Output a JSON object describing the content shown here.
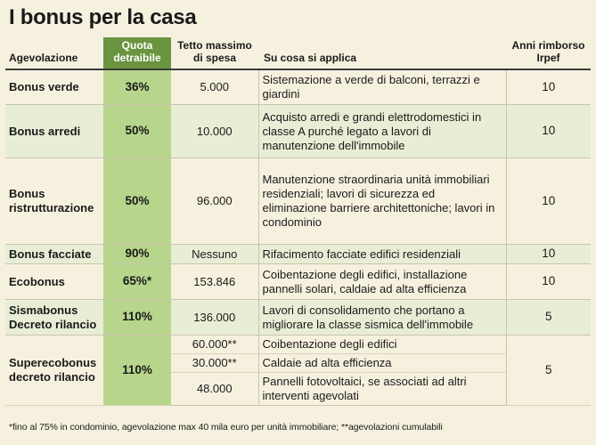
{
  "title": "I bonus per la casa",
  "headers": {
    "agevolazione": "Agevolazione",
    "quota": "Quota detraibile",
    "tetto": "Tetto massimo di spesa",
    "applica": "Su cosa si applica",
    "anni": "Anni rimborso Irpef"
  },
  "rows": [
    {
      "name": "Bonus verde",
      "quota": "36%",
      "tetto": "5.000",
      "desc": "Sistemazione a verde di balconi, terrazzi e giardini",
      "anni": "10"
    },
    {
      "name": "Bonus arredi",
      "quota": "50%",
      "tetto": "10.000",
      "desc": "Acquisto arredi e grandi elettrodomestici in classe A purché legato a lavori di manutenzione dell'immobile",
      "anni": "10"
    },
    {
      "name": "Bonus ristrutturazione",
      "quota": "50%",
      "tetto": "96.000",
      "desc": "Manutenzione straordinaria unità immobiliari residenziali; lavori di sicurezza ed eliminazione barriere architettoniche; lavori in condominio",
      "anni": "10"
    },
    {
      "name": "Bonus facciate",
      "quota": "90%",
      "tetto": "Nessuno",
      "desc": "Rifacimento facciate edifici residenziali",
      "anni": "10"
    },
    {
      "name": "Ecobonus",
      "quota": "65%*",
      "tetto": "153.846",
      "desc": "Coibentazione degli edifici, installazione pannelli solari, caldaie ad alta efficienza",
      "anni": "10"
    },
    {
      "name": "Sismabonus Decreto rilancio",
      "quota": "110%",
      "tetto": "136.000",
      "desc": "Lavori di consolidamento che portano a migliorare la classe sismica dell'immobile",
      "anni": "5"
    }
  ],
  "superecobonus": {
    "name": "Superecobonus decreto rilancio",
    "quota": "110%",
    "anni": "5",
    "items": [
      {
        "tetto": "60.000**",
        "desc": "Coibentazione degli edifici"
      },
      {
        "tetto": "30.000**",
        "desc": "Caldaie ad alta efficienza"
      },
      {
        "tetto": "48.000",
        "desc": "Pannelli fotovoltaici, se associati ad altri interventi agevolati"
      }
    ]
  },
  "footnote": "*fino al 75% in condominio,  agevolazione max 40 mila euro per unità immobiliare; **agevolazioni cumulabili"
}
